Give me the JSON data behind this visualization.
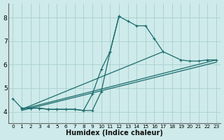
{
  "xlabel": "Humidex (Indice chaleur)",
  "background_color": "#ceeaea",
  "grid_color": "#aacfcf",
  "line_color": "#1a6b6b",
  "xlim": [
    -0.5,
    23.5
  ],
  "ylim": [
    3.5,
    8.6
  ],
  "yticks": [
    4,
    5,
    6,
    7,
    8
  ],
  "xticks": [
    0,
    1,
    2,
    3,
    4,
    5,
    6,
    7,
    8,
    9,
    10,
    11,
    12,
    13,
    14,
    15,
    16,
    17,
    18,
    19,
    20,
    21,
    22,
    23
  ],
  "series": [
    {
      "x": [
        0,
        1,
        2,
        3,
        4,
        5,
        6,
        7,
        8,
        9,
        10,
        11,
        12,
        13,
        14,
        15,
        16,
        17,
        19,
        20,
        21,
        22,
        23
      ],
      "y": [
        4.55,
        4.15,
        4.15,
        4.15,
        4.1,
        4.1,
        4.1,
        4.1,
        4.05,
        4.75,
        5.8,
        6.55,
        8.05,
        7.85,
        7.65,
        7.65,
        7.1,
        6.55,
        6.2,
        6.15,
        6.15,
        6.2,
        6.2
      ],
      "marker": true
    },
    {
      "x": [
        1,
        2,
        3,
        4,
        5,
        6,
        7,
        8,
        9,
        10,
        11,
        12
      ],
      "y": [
        4.15,
        4.15,
        4.15,
        4.1,
        4.1,
        4.1,
        4.1,
        4.05,
        4.05,
        4.85,
        6.55,
        8.05
      ],
      "marker": true
    },
    {
      "x": [
        1,
        23
      ],
      "y": [
        4.1,
        6.2
      ],
      "marker": false
    },
    {
      "x": [
        1,
        23
      ],
      "y": [
        4.05,
        6.1
      ],
      "marker": false
    },
    {
      "x": [
        1,
        17
      ],
      "y": [
        4.1,
        6.55
      ],
      "marker": false
    }
  ]
}
